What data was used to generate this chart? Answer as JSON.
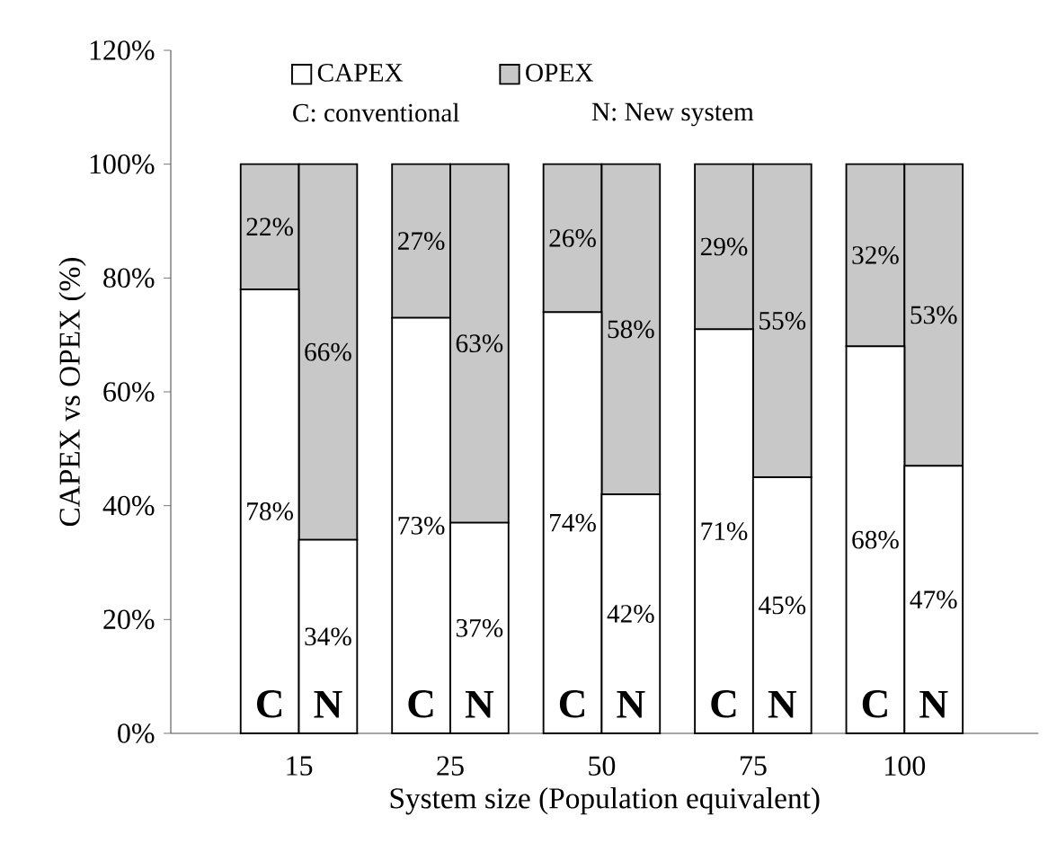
{
  "chart_data": {
    "type": "bar",
    "stacked": true,
    "xlabel": "System size (Population equivalent)",
    "ylabel": "CAPEX vs OPEX (%)",
    "categories": [
      "C",
      "N",
      "C",
      "N",
      "C",
      "N",
      "C",
      "N",
      "C",
      "N"
    ],
    "series": [
      {
        "name": "CAPEX",
        "color": "#ffffff",
        "values": [
          78,
          34,
          73,
          37,
          74,
          42,
          71,
          45,
          68,
          47
        ],
        "value_labels": [
          "78%",
          "34%",
          "73%",
          "37%",
          "74%",
          "42%",
          "71%",
          "45%",
          "68%",
          "47%"
        ]
      },
      {
        "name": "OPEX",
        "color": "#c8c8c8",
        "values": [
          22,
          66,
          27,
          63,
          26,
          58,
          29,
          55,
          32,
          53
        ],
        "value_labels": [
          "22%",
          "66%",
          "27%",
          "63%",
          "26%",
          "58%",
          "29%",
          "55%",
          "32%",
          "53%"
        ]
      }
    ],
    "ylim": [
      0,
      120
    ],
    "yticks": [
      {
        "value": 0,
        "label": "0%"
      },
      {
        "value": 20,
        "label": "20%"
      },
      {
        "value": 40,
        "label": "40%"
      },
      {
        "value": 60,
        "label": "60%"
      },
      {
        "value": 80,
        "label": "80%"
      },
      {
        "value": 100,
        "label": "100%"
      },
      {
        "value": 120,
        "label": "120%"
      }
    ],
    "legend": "top left",
    "grid": false,
    "annotations": [
      "C: conventional",
      "N: New system",
      "15",
      "25",
      "50",
      "75",
      "100"
    ]
  }
}
